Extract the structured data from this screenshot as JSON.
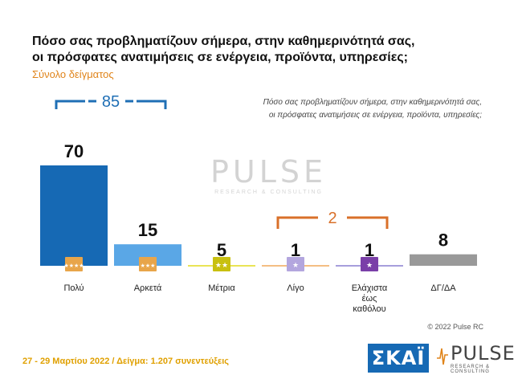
{
  "title_line1": "Πόσο σας προβληματίζουν σήμερα, στην καθημερινότητά σας,",
  "title_line2": "οι πρόσφατες ανατιμήσεις σε ενέργεια, προϊόντα, υπηρεσίες;",
  "subtitle": "Σύνολο δείγματος",
  "question_line1": "Πόσο σας προβληματίζουν σήμερα, στην καθημερινότητά σας,",
  "question_line2": "οι πρόσφατες ανατιμήσεις σε ενέργεια, προϊόντα, υπηρεσίες;",
  "watermark": {
    "main": "PULSE",
    "sub": "RESEARCH & CONSULTING"
  },
  "chart_data": {
    "type": "bar",
    "categories": [
      "Πολύ",
      "Αρκετά",
      "Μέτρια",
      "Λίγο",
      "Ελάχιστα έως καθόλου",
      "ΔΓ/ΔΑ"
    ],
    "category_lines": [
      [
        "Πολύ"
      ],
      [
        "Αρκετά"
      ],
      [
        "Μέτρια"
      ],
      [
        "Λίγο"
      ],
      [
        "Ελάχιστα",
        "έως",
        "καθόλου"
      ],
      [
        "ΔΓ/ΔΑ"
      ]
    ],
    "values": [
      70,
      15,
      5,
      1,
      1,
      8
    ],
    "colors": [
      "#1669b4",
      "#5aa7e6",
      "#e3dc1e",
      "#f0a85a",
      "#8a7fd0",
      "#999999"
    ],
    "icon_colors": [
      "#e8a54a",
      "#e8a54a",
      "#c8c010",
      "#b3a6de",
      "#7a3fa8",
      ""
    ],
    "icon_stars": [
      4,
      3,
      2,
      1,
      1,
      0
    ],
    "groups": [
      {
        "label": "85",
        "from": 0,
        "to": 1,
        "color": "#1f6fb5"
      },
      {
        "label": "2",
        "from": 3,
        "to": 4,
        "color": "#d9702a"
      }
    ],
    "ylim": [
      0,
      70
    ]
  },
  "copyright": "© 2022 Pulse RC",
  "footer": "27 - 29 Μαρτίου 2022 / Δείγμα: 1.207 συνεντεύξεις",
  "logos": {
    "skai": "ΣΚΑΪ",
    "pulse": "PULSE",
    "pulse_sub": "RESEARCH & CONSULTING"
  }
}
